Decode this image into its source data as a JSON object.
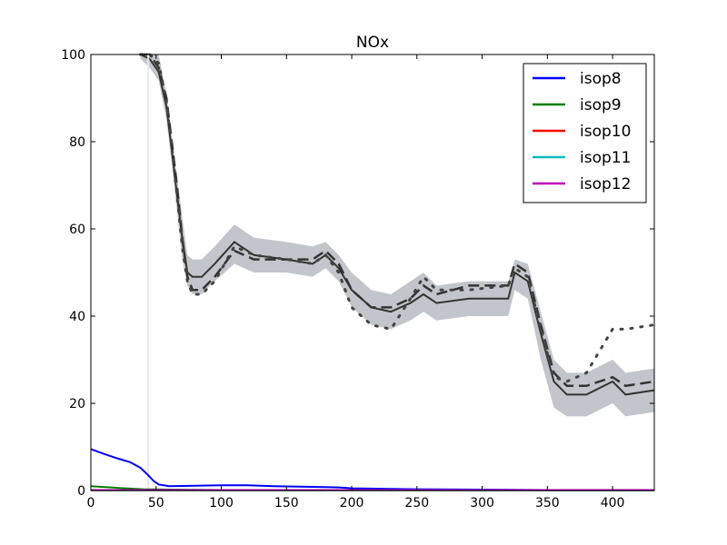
{
  "chart_data": {
    "type": "line",
    "title": "NOx",
    "xlabel": "",
    "ylabel": "",
    "xlim": [
      0,
      432
    ],
    "ylim": [
      0,
      100
    ],
    "x_ticks": [
      0,
      50,
      100,
      150,
      200,
      250,
      300,
      350,
      400
    ],
    "y_ticks": [
      0,
      20,
      40,
      60,
      80,
      100
    ],
    "grid": false,
    "legend_position": "top-right",
    "series": [
      {
        "name": "isop8",
        "color": "#0000ff",
        "x": [
          0,
          10,
          20,
          30,
          38,
          44,
          48,
          52,
          60,
          80,
          100,
          120,
          140,
          160,
          180,
          190,
          200,
          250,
          300,
          350,
          400,
          432
        ],
        "y": [
          9.5,
          8.4,
          7.4,
          6.5,
          5.2,
          3.5,
          2.2,
          1.4,
          1.0,
          1.1,
          1.2,
          1.2,
          1.0,
          0.9,
          0.8,
          0.7,
          0.5,
          0.3,
          0.2,
          0.1,
          0.1,
          0.1
        ]
      },
      {
        "name": "isop9",
        "color": "#008000",
        "x": [
          0,
          20,
          40,
          60,
          100,
          200,
          300,
          432
        ],
        "y": [
          1.0,
          0.6,
          0.3,
          0.2,
          0.1,
          0.1,
          0.05,
          0.05
        ]
      },
      {
        "name": "isop10",
        "color": "#ff0000",
        "x": [
          0,
          100,
          200,
          300,
          432
        ],
        "y": [
          0.05,
          0.05,
          0.05,
          0.05,
          0.05
        ]
      },
      {
        "name": "isop11",
        "color": "#00bfbf",
        "x": [
          0,
          100,
          200,
          300,
          432
        ],
        "y": [
          0.05,
          0.05,
          0.05,
          0.05,
          0.05
        ]
      },
      {
        "name": "isop12",
        "color": "#bf00bf",
        "x": [
          0,
          100,
          200,
          300,
          432
        ],
        "y": [
          0.1,
          0.1,
          0.1,
          0.1,
          0.1
        ]
      }
    ],
    "background_reference": {
      "x": [
        38,
        45,
        52,
        58,
        62,
        66,
        70,
        74,
        78,
        85,
        95,
        110,
        125,
        150,
        170,
        180,
        190,
        200,
        215,
        230,
        245,
        255,
        265,
        290,
        320,
        325,
        335,
        345,
        355,
        365,
        380,
        400,
        410,
        432
      ],
      "solid": [
        100,
        99,
        96,
        88,
        78,
        68,
        58,
        50,
        49,
        49,
        52,
        57,
        54,
        53,
        52,
        54,
        51,
        46,
        42,
        41,
        43,
        45,
        43,
        44,
        44,
        50,
        48,
        36,
        25,
        22,
        22,
        25,
        22,
        23
      ],
      "dashed": [
        100,
        100,
        97,
        90,
        80,
        70,
        58,
        49,
        46,
        46,
        49,
        55,
        53,
        53,
        53,
        55,
        52,
        46,
        42,
        42,
        44,
        47,
        45,
        47,
        47,
        52,
        50,
        38,
        27,
        24,
        24,
        26,
        24,
        25
      ],
      "dotted": [
        100,
        100,
        98,
        89,
        79,
        68,
        56,
        48,
        45,
        45,
        48,
        56,
        54,
        53,
        52,
        54,
        50,
        42,
        38,
        37,
        44,
        49,
        46,
        46,
        47,
        51,
        49,
        37,
        26,
        25,
        27,
        37,
        37,
        38
      ],
      "band_lower": [
        99,
        97,
        94,
        85,
        75,
        64,
        53,
        47,
        45,
        45,
        48,
        52,
        50,
        50,
        49,
        51,
        48,
        42,
        38,
        37,
        39,
        41,
        39,
        40,
        40,
        46,
        44,
        30,
        19,
        17,
        17,
        20,
        17,
        18
      ],
      "band_upper": [
        100,
        100,
        100,
        91,
        81,
        72,
        63,
        54,
        53,
        53,
        56,
        61,
        58,
        57,
        56,
        57,
        54,
        50,
        46,
        45,
        48,
        50,
        47,
        48,
        48,
        53,
        52,
        41,
        30,
        27,
        27,
        30,
        27,
        28
      ]
    }
  }
}
